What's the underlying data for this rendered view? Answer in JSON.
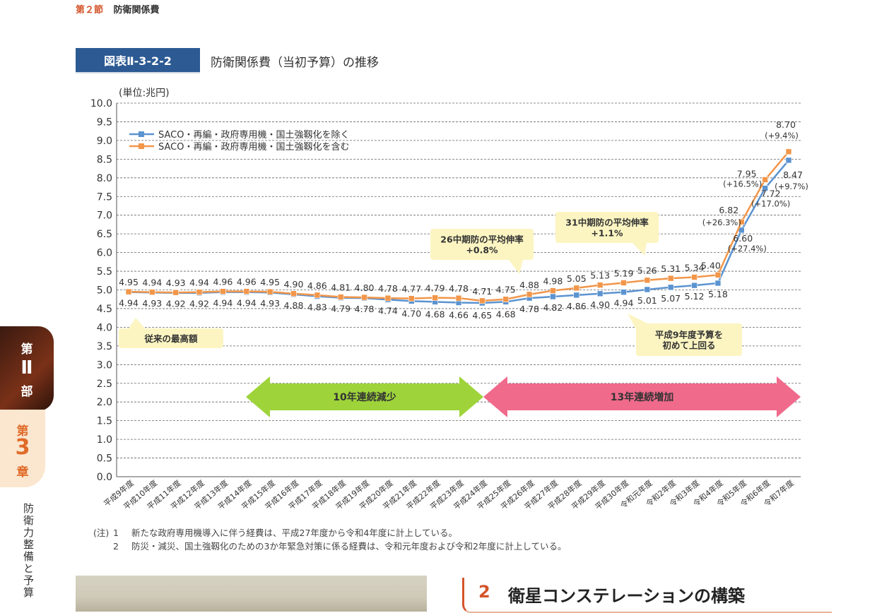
{
  "header": {
    "section": "第２節",
    "title": "防衛関係費"
  },
  "figure": {
    "badge": "図表Ⅱ-3-2-2",
    "title": "防衛関係費（当初予算）の推移"
  },
  "chart_data": {
    "type": "line",
    "unit_label": "(単位:兆円)",
    "ylim": [
      0,
      10
    ],
    "yticks": [
      "0.0",
      "0.5",
      "1.0",
      "1.5",
      "2.0",
      "2.5",
      "3.0",
      "3.5",
      "4.0",
      "4.5",
      "5.0",
      "5.5",
      "6.0",
      "6.5",
      "7.0",
      "7.5",
      "8.0",
      "8.5",
      "9.0",
      "9.5",
      "10.0"
    ],
    "categories": [
      "平成9年度",
      "平成10年度",
      "平成11年度",
      "平成12年度",
      "平成13年度",
      "平成14年度",
      "平成15年度",
      "平成16年度",
      "平成17年度",
      "平成18年度",
      "平成19年度",
      "平成20年度",
      "平成21年度",
      "平成22年度",
      "平成23年度",
      "平成24年度",
      "平成25年度",
      "平成26年度",
      "平成27年度",
      "平成28年度",
      "平成29年度",
      "平成30年度",
      "令和元年度",
      "令和2年度",
      "令和3年度",
      "令和4年度",
      "令和5年度",
      "令和6年度",
      "令和7年度"
    ],
    "series": [
      {
        "name": "SACO・再編・政府専用機・国土強靱化を除く",
        "color": "#5b93d0",
        "values": [
          4.94,
          4.93,
          4.92,
          4.92,
          4.94,
          4.94,
          4.93,
          4.88,
          4.83,
          4.79,
          4.78,
          4.74,
          4.7,
          4.68,
          4.66,
          4.65,
          4.68,
          4.78,
          4.82,
          4.86,
          4.9,
          4.94,
          5.01,
          5.07,
          5.12,
          5.18,
          6.6,
          7.72,
          8.47
        ],
        "labels": [
          "4.94",
          "4.93",
          "4.92",
          "4.92",
          "4.94",
          "4.94",
          "4.93",
          "4.88",
          "4.83",
          "4.79",
          "4.78",
          "4.74",
          "4.70",
          "4.68",
          "4.66",
          "4.65",
          "4.68",
          "4.78",
          "4.82",
          "4.86",
          "4.90",
          "4.94",
          "5.01",
          "5.07",
          "5.12",
          "5.18",
          "6.60",
          "7.72",
          "8.47"
        ],
        "growth": {
          "26": "(+27.4%)",
          "27": "(+17.0%)",
          "28": "(+9.7%)"
        }
      },
      {
        "name": "SACO・再編・政府専用機・国土強靱化を含む",
        "color": "#f2964a",
        "values": [
          4.95,
          4.94,
          4.93,
          4.94,
          4.96,
          4.96,
          4.95,
          4.9,
          4.86,
          4.81,
          4.8,
          4.78,
          4.77,
          4.79,
          4.78,
          4.71,
          4.75,
          4.88,
          4.98,
          5.05,
          5.13,
          5.19,
          5.26,
          5.31,
          5.34,
          5.4,
          6.82,
          7.95,
          8.7
        ],
        "labels": [
          "4.95",
          "4.94",
          "4.93",
          "4.94",
          "4.96",
          "4.96",
          "4.95",
          "4.90",
          "4.86",
          "4.81",
          "4.80",
          "4.78",
          "4.77",
          "4.79",
          "4.78",
          "4.71",
          "4.75",
          "4.88",
          "4.98",
          "5.05",
          "5.13",
          "5.19",
          "5.26",
          "5.31",
          "5.34",
          "5.40",
          "6.82",
          "7.95",
          "8.70"
        ],
        "growth": {
          "26": "(+26.3%)",
          "27": "(+16.5%)",
          "28": "(+9.4%)"
        }
      }
    ],
    "grid": true,
    "legend": "top-left",
    "annotations": [
      {
        "id": "saco-max",
        "text": "従来の最高額"
      },
      {
        "id": "chuki26",
        "line1": "26中期防の平均伸率",
        "line2": "+0.8%"
      },
      {
        "id": "chuki31",
        "line1": "31中期防の平均伸率",
        "line2": "+1.1%"
      },
      {
        "id": "h9-exceed",
        "line1": "平成9年度予算を",
        "line2": "初めて上回る"
      }
    ],
    "arrows": [
      {
        "id": "decrease",
        "text": "10年連続減少",
        "color": "#9ed43a",
        "from": "平成15年度",
        "to": "平成24年度"
      },
      {
        "id": "increase",
        "text": "13年連続増加",
        "color": "#f06a8c",
        "from": "平成25年度",
        "to": "令和7年度"
      }
    ]
  },
  "notes": {
    "prefix": "(注)",
    "items": [
      {
        "num": "1",
        "text": "新たな政府専用機導入に伴う経費は、平成27年度から令和4年度に計上している。"
      },
      {
        "num": "2",
        "text": "防災・減災、国土強靱化のための3か年緊急対策に係る経費は、令和元年度および令和2年度に計上している。"
      }
    ]
  },
  "side": {
    "part_a": "第",
    "part_b": "Ⅱ",
    "part_c": "部",
    "chap_a": "第",
    "chap_b": "3",
    "chap_c": "章",
    "vertical": "防衛力整備と予算"
  },
  "section2": {
    "num": "2",
    "title": "衛星コンステレーションの構築"
  }
}
